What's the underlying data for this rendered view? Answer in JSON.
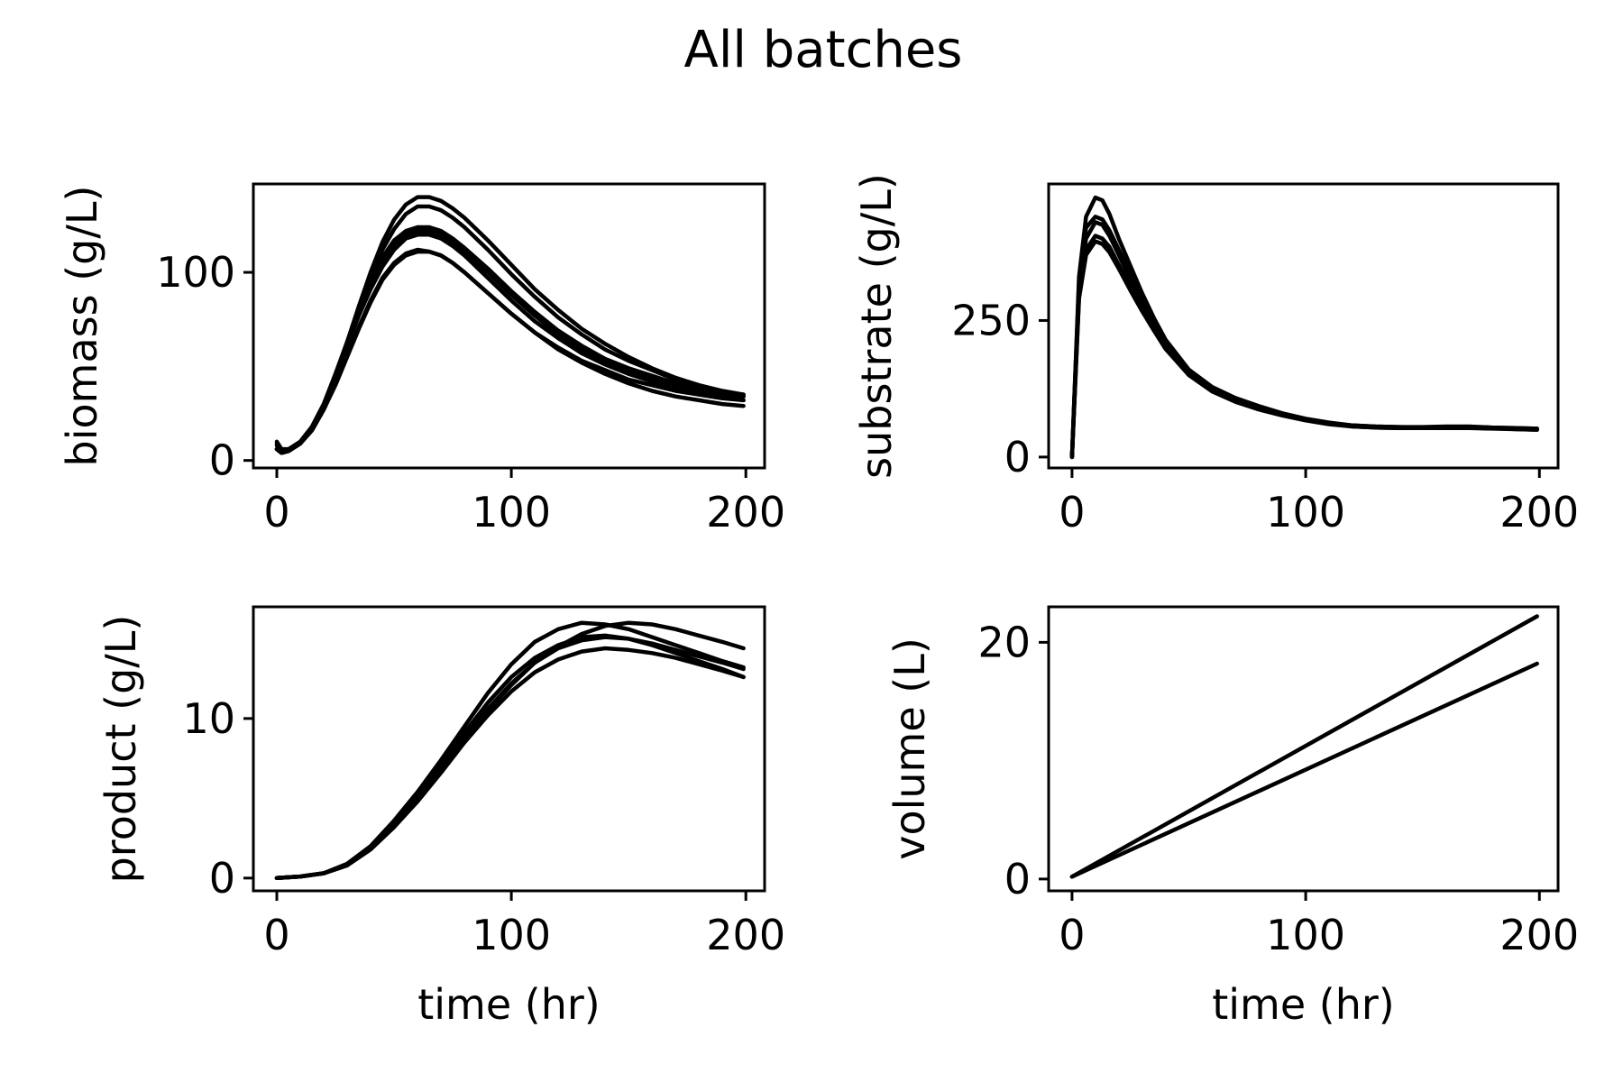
{
  "figure": {
    "title": "All batches",
    "line_color": "#000000",
    "background": "#ffffff"
  },
  "chart_data": [
    {
      "type": "line",
      "xlabel": "",
      "ylabel": "biomass (g/L)",
      "xlim": [
        -10,
        208
      ],
      "ylim": [
        -4,
        147
      ],
      "xticks": [
        0,
        100,
        200
      ],
      "yticks": [
        0,
        100
      ],
      "x": [
        0,
        2,
        5,
        10,
        15,
        20,
        25,
        30,
        35,
        40,
        45,
        50,
        55,
        60,
        65,
        70,
        75,
        80,
        90,
        100,
        110,
        120,
        130,
        140,
        150,
        160,
        170,
        180,
        190,
        199
      ],
      "series": [
        {
          "values": [
            6,
            4,
            5,
            9,
            17,
            29,
            45,
            63,
            82,
            100,
            116,
            128,
            136,
            140,
            140,
            138,
            134,
            129,
            117,
            104,
            91,
            80,
            70,
            62,
            55,
            49,
            44,
            40,
            37,
            35
          ]
        },
        {
          "values": [
            6,
            4,
            5,
            9,
            17,
            29,
            45,
            62,
            80,
            97,
            112,
            123,
            131,
            135,
            135,
            133,
            129,
            124,
            112,
            99,
            87,
            76,
            67,
            59,
            53,
            48,
            43,
            39,
            36,
            34
          ]
        },
        {
          "values": [
            10,
            6,
            6,
            10,
            18,
            30,
            46,
            63,
            80,
            96,
            108,
            117,
            122,
            124,
            124,
            122,
            118,
            113,
            102,
            90,
            79,
            69,
            61,
            54,
            49,
            45,
            41,
            38,
            36,
            34
          ]
        },
        {
          "values": [
            6,
            4,
            5,
            9,
            17,
            29,
            45,
            62,
            79,
            94,
            106,
            115,
            120,
            122,
            122,
            120,
            116,
            111,
            100,
            88,
            77,
            67,
            59,
            53,
            48,
            44,
            40,
            38,
            36,
            35
          ]
        },
        {
          "values": [
            9,
            5,
            5,
            9,
            17,
            29,
            44,
            61,
            77,
            91,
            103,
            112,
            118,
            120,
            120,
            118,
            114,
            109,
            97,
            85,
            74,
            65,
            57,
            51,
            46,
            42,
            39,
            36,
            34,
            32
          ]
        },
        {
          "values": [
            8,
            5,
            5,
            9,
            16,
            27,
            40,
            55,
            70,
            84,
            96,
            104,
            109,
            111,
            111,
            109,
            105,
            100,
            89,
            78,
            68,
            60,
            53,
            48,
            43,
            40,
            37,
            35,
            33,
            32
          ]
        },
        {
          "values": [
            6,
            4,
            5,
            9,
            16,
            27,
            41,
            56,
            71,
            85,
            97,
            105,
            110,
            112,
            111,
            109,
            105,
            100,
            89,
            78,
            68,
            59,
            52,
            46,
            41,
            37,
            34,
            32,
            30,
            29
          ]
        }
      ]
    },
    {
      "type": "line",
      "xlabel": "",
      "ylabel": "substrate (g/L)",
      "xlim": [
        -10,
        208
      ],
      "ylim": [
        -20,
        500
      ],
      "xticks": [
        0,
        100,
        200
      ],
      "yticks": [
        0,
        250
      ],
      "x": [
        0,
        3,
        6,
        10,
        13,
        16,
        20,
        25,
        30,
        35,
        40,
        50,
        60,
        70,
        80,
        90,
        100,
        110,
        120,
        130,
        140,
        150,
        160,
        170,
        180,
        190,
        199
      ],
      "series": [
        {
          "values": [
            0,
            330,
            440,
            475,
            470,
            445,
            400,
            350,
            300,
            255,
            215,
            160,
            128,
            108,
            93,
            80,
            70,
            63,
            58,
            56,
            55,
            54,
            55,
            55,
            54,
            53,
            52
          ]
        },
        {
          "values": [
            0,
            320,
            420,
            440,
            435,
            415,
            380,
            335,
            290,
            250,
            212,
            160,
            128,
            108,
            93,
            80,
            70,
            63,
            58,
            56,
            55,
            55,
            56,
            56,
            54,
            53,
            52
          ]
        },
        {
          "values": [
            0,
            310,
            400,
            430,
            425,
            405,
            370,
            325,
            282,
            243,
            207,
            155,
            125,
            105,
            90,
            78,
            69,
            62,
            57,
            55,
            54,
            54,
            55,
            55,
            54,
            52,
            51
          ]
        },
        {
          "values": [
            0,
            295,
            380,
            405,
            400,
            385,
            352,
            312,
            272,
            236,
            202,
            152,
            122,
            103,
            89,
            77,
            68,
            61,
            56,
            54,
            53,
            53,
            54,
            54,
            53,
            51,
            50
          ]
        },
        {
          "values": [
            0,
            290,
            370,
            395,
            390,
            375,
            345,
            305,
            267,
            232,
            198,
            150,
            120,
            101,
            87,
            76,
            67,
            60,
            56,
            54,
            53,
            53,
            53,
            53,
            52,
            51,
            50
          ]
        }
      ]
    },
    {
      "type": "line",
      "xlabel": "time (hr)",
      "ylabel": "product (g/L)",
      "xlim": [
        -10,
        208
      ],
      "ylim": [
        -0.8,
        17
      ],
      "xticks": [
        0,
        100,
        200
      ],
      "yticks": [
        0,
        10
      ],
      "x": [
        0,
        10,
        20,
        30,
        40,
        50,
        60,
        70,
        80,
        90,
        100,
        110,
        120,
        130,
        140,
        150,
        160,
        170,
        180,
        190,
        199
      ],
      "series": [
        {
          "values": [
            0,
            0.1,
            0.3,
            0.9,
            2.0,
            3.6,
            5.4,
            7.4,
            9.5,
            11.6,
            13.4,
            14.8,
            15.6,
            16.0,
            15.9,
            15.6,
            15.1,
            14.6,
            14.1,
            13.6,
            13.2
          ]
        },
        {
          "values": [
            0,
            0.1,
            0.3,
            0.8,
            1.9,
            3.4,
            5.2,
            7.1,
            9.1,
            11.0,
            12.6,
            13.8,
            14.6,
            15.1,
            15.2,
            15.0,
            14.6,
            14.1,
            13.6,
            13.1,
            12.6
          ]
        },
        {
          "values": [
            0,
            0.1,
            0.3,
            0.8,
            1.8,
            3.3,
            5.0,
            6.9,
            8.8,
            10.6,
            12.2,
            13.5,
            14.4,
            14.9,
            15.1,
            15.0,
            14.7,
            14.3,
            13.9,
            13.5,
            13.1
          ]
        },
        {
          "values": [
            0,
            0.1,
            0.3,
            0.8,
            1.8,
            3.2,
            4.9,
            6.8,
            8.7,
            10.5,
            12.1,
            13.5,
            14.5,
            15.3,
            15.8,
            16.0,
            15.9,
            15.6,
            15.2,
            14.8,
            14.4
          ]
        },
        {
          "values": [
            0,
            0.1,
            0.3,
            0.8,
            1.8,
            3.2,
            4.8,
            6.6,
            8.5,
            10.2,
            11.7,
            12.9,
            13.7,
            14.2,
            14.4,
            14.3,
            14.1,
            13.8,
            13.4,
            13.0,
            12.6
          ]
        }
      ]
    },
    {
      "type": "line",
      "xlabel": "time (hr)",
      "ylabel": "volume (L)",
      "xlim": [
        -10,
        208
      ],
      "ylim": [
        -1,
        23
      ],
      "xticks": [
        0,
        100,
        200
      ],
      "yticks": [
        0,
        20
      ],
      "x": [
        0,
        199
      ],
      "series": [
        {
          "values": [
            0.2,
            22.2
          ]
        },
        {
          "values": [
            0.2,
            18.2
          ]
        }
      ]
    }
  ]
}
